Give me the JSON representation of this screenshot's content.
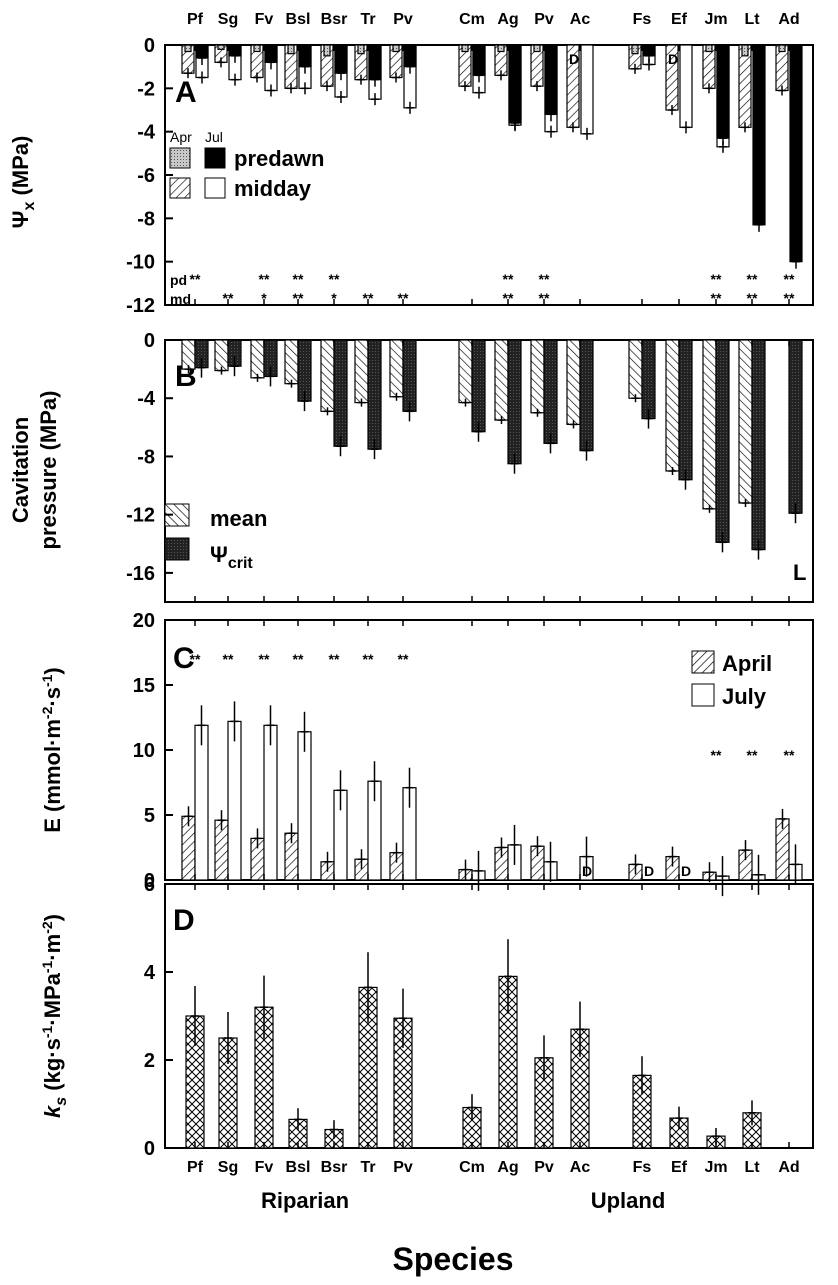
{
  "species": [
    "Pf",
    "Sg",
    "Fv",
    "Bsl",
    "Bsr",
    "Tr",
    "Pv",
    "Cm",
    "Ag",
    "Pv",
    "Ac",
    "Fs",
    "Ef",
    "Jm",
    "Lt",
    "Ad"
  ],
  "groups": [
    "Riparian",
    "Upland"
  ],
  "x_title": "Species",
  "chart_data": [
    {
      "type": "bar",
      "panel": "A",
      "ylabel": "Ψx (MPa)",
      "ylim": [
        -12,
        0
      ],
      "yticks": [
        0,
        -2,
        -4,
        -6,
        -8,
        -10,
        -12
      ],
      "categories": [
        "Pf",
        "Sg",
        "Fv",
        "Bsl",
        "Bsr",
        "Tr",
        "Pv",
        "Cm",
        "Ag",
        "Pv",
        "Ac",
        "Fs",
        "Ef",
        "Jm",
        "Lt",
        "Ad"
      ],
      "legend_header": [
        "Apr",
        "Jul"
      ],
      "legend": [
        "predawn",
        "midday"
      ],
      "series": [
        {
          "values": [
            -0.3,
            -0.2,
            -0.3,
            -0.4,
            -0.5,
            -0.4,
            -0.3,
            -0.3,
            -0.3,
            -0.3,
            null,
            -0.4,
            null,
            -0.3,
            -0.5,
            -0.3
          ]
        },
        {
          "values": [
            -0.6,
            -0.5,
            -0.8,
            -1.0,
            -1.3,
            -1.6,
            -1.0,
            -1.4,
            -3.6,
            -3.2,
            null,
            -0.5,
            null,
            -4.3,
            -8.3,
            -10.0
          ]
        },
        {
          "values": [
            -1.3,
            -0.8,
            -1.5,
            -2.0,
            -1.9,
            -1.6,
            -1.5,
            -1.9,
            -1.4,
            -1.9,
            -3.8,
            -1.1,
            -3.0,
            -2.0,
            -3.8,
            -2.1
          ]
        },
        {
          "values": [
            -1.5,
            -1.6,
            -2.1,
            -2.0,
            -2.4,
            -2.5,
            -2.9,
            -2.2,
            -3.7,
            -4.0,
            -4.1,
            -0.9,
            -3.8,
            -4.7,
            null,
            null
          ]
        }
      ],
      "pd_label": "pd",
      "md_label": "md",
      "pd_stars": [
        "**",
        "",
        "**",
        "**",
        "**",
        "",
        "",
        "",
        "**",
        "**",
        "",
        "",
        "",
        "**",
        "**",
        "**"
      ],
      "md_stars": [
        "",
        "**",
        "*",
        "**",
        "*",
        "**",
        "**",
        "",
        "**",
        "**",
        "",
        "",
        "",
        "**",
        "**",
        "**"
      ],
      "d_marks": [
        "",
        "",
        "",
        "",
        "",
        "",
        "",
        "",
        "",
        "",
        "D",
        "",
        "D",
        "",
        "",
        ""
      ]
    },
    {
      "type": "bar",
      "panel": "B",
      "ylabel": "Cavitation pressure (MPa)",
      "ylim": [
        -18,
        0
      ],
      "yticks": [
        0,
        -4,
        -8,
        -12,
        -16
      ],
      "categories": [
        "Pf",
        "Sg",
        "Fv",
        "Bsl",
        "Bsr",
        "Tr",
        "Pv",
        "Cm",
        "Ag",
        "Pv",
        "Ac",
        "Fs",
        "Ef",
        "Jm",
        "Lt",
        "Ad"
      ],
      "legend": [
        "mean",
        "Ψcrit"
      ],
      "series": [
        {
          "values": [
            -2.0,
            -2.1,
            -2.6,
            -3.0,
            -4.9,
            -4.3,
            -3.9,
            -4.3,
            -5.5,
            -5.0,
            -5.8,
            -4.0,
            -9.0,
            -11.6,
            -11.2,
            null
          ]
        },
        {
          "values": [
            -1.9,
            -1.8,
            -2.5,
            -4.2,
            -7.3,
            -7.5,
            -4.9,
            -6.3,
            -8.5,
            -7.1,
            -7.6,
            -5.4,
            -9.6,
            -13.9,
            -14.4,
            -11.9
          ]
        }
      ],
      "l_mark": "L"
    },
    {
      "type": "bar",
      "panel": "C",
      "ylabel": "E (mmol·m⁻²·s⁻¹)",
      "ylim": [
        0,
        20
      ],
      "yticks": [
        0,
        5,
        10,
        15,
        20
      ],
      "categories": [
        "Pf",
        "Sg",
        "Fv",
        "Bsl",
        "Bsr",
        "Tr",
        "Pv",
        "Cm",
        "Ag",
        "Pv",
        "Ac",
        "Fs",
        "Ef",
        "Jm",
        "Lt",
        "Ad"
      ],
      "legend": [
        "April",
        "July"
      ],
      "series": [
        {
          "values": [
            4.9,
            4.6,
            3.2,
            3.6,
            1.4,
            1.6,
            2.1,
            0.8,
            2.5,
            2.6,
            null,
            1.2,
            1.8,
            0.6,
            2.3,
            4.7
          ]
        },
        {
          "values": [
            11.9,
            12.2,
            11.9,
            11.4,
            6.9,
            7.6,
            7.1,
            0.7,
            2.7,
            1.4,
            1.8,
            null,
            null,
            0.3,
            0.4,
            1.2
          ]
        }
      ],
      "stars": [
        "**",
        "**",
        "**",
        "**",
        "**",
        "**",
        "**",
        "",
        "",
        "",
        "",
        "",
        "",
        "**",
        "**",
        "**"
      ],
      "d_marks": [
        "",
        "",
        "",
        "",
        "",
        "",
        "",
        "",
        "",
        "",
        "D",
        "D",
        "D",
        "",
        "",
        ""
      ]
    },
    {
      "type": "bar",
      "panel": "D",
      "ylabel": "ks (kg·s⁻¹·MPa⁻¹·m⁻²)",
      "ylim": [
        0,
        6
      ],
      "yticks": [
        0,
        2,
        4,
        6
      ],
      "categories": [
        "Pf",
        "Sg",
        "Fv",
        "Bsl",
        "Bsr",
        "Tr",
        "Pv",
        "Cm",
        "Ag",
        "Pv",
        "Ac",
        "Fs",
        "Ef",
        "Jm",
        "Lt",
        "Ad"
      ],
      "series": [
        {
          "values": [
            3.0,
            2.5,
            3.2,
            0.65,
            0.42,
            3.65,
            2.95,
            0.92,
            3.9,
            2.05,
            2.7,
            1.65,
            0.68,
            0.27,
            0.8,
            null
          ]
        }
      ]
    }
  ]
}
